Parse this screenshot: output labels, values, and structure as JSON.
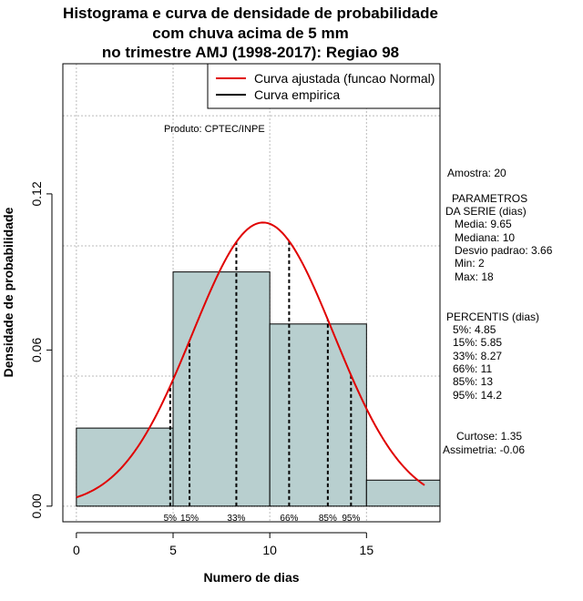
{
  "title_lines": [
    "Histograma e curva de densidade de probabilidade",
    "com chuva acima de 5 mm",
    "no trimestre AMJ (1998-2017): Regiao 98"
  ],
  "legend": {
    "fitted": "Curva ajustada (funcao Normal)",
    "empirical": "Curva empirica"
  },
  "product_label": "Produto: CPTEC/INPE",
  "stats": {
    "sample": "Amostra: 20",
    "params_title": "PARAMETROS",
    "params_subtitle": "DA SERIE (dias)",
    "mean": "Media: 9.65",
    "median": "Mediana: 10",
    "sd": "Desvio padrao: 3.66",
    "min": "Min: 2",
    "max": "Max: 18",
    "percentis_title": "PERCENTIS (dias)",
    "p5": "5%: 4.85",
    "p15": "15%: 5.85",
    "p33": "33%: 8.27",
    "p66": "66%: 11",
    "p85": "85%: 13",
    "p95": "95%: 14.2",
    "kurtosis": "Curtose: 1.35",
    "skewness": "Assimetria: -0.06"
  },
  "colors": {
    "bar_fill": "#b8cfcf",
    "fitted_curve": "#e00000",
    "grid": "#bbbbbb"
  },
  "chart_data": {
    "type": "bar",
    "xlabel": "Numero de dias",
    "ylabel": "Densidade de probabilidade",
    "xlim": [
      -0.7,
      18.8
    ],
    "ylim": [
      -0.006,
      0.17
    ],
    "x_ticks": [
      0,
      5,
      10,
      15
    ],
    "y_ticks": [
      0.0,
      0.06,
      0.12
    ],
    "y_tick_labels": [
      "0.00",
      "0.06",
      "0.12"
    ],
    "grid": true,
    "legend_position": "top-right",
    "bins": [
      {
        "start": 0,
        "end": 5,
        "density": 0.03
      },
      {
        "start": 5,
        "end": 10,
        "density": 0.09
      },
      {
        "start": 10,
        "end": 15,
        "density": 0.07
      },
      {
        "start": 15,
        "end": 18.8,
        "density": 0.01
      }
    ],
    "normal_fit": {
      "mean": 9.65,
      "sd": 3.66,
      "x_from": 0,
      "x_to": 18
    },
    "percentiles": [
      {
        "label": "5%",
        "x": 4.85
      },
      {
        "label": "15%",
        "x": 5.85
      },
      {
        "label": "33%",
        "x": 8.27
      },
      {
        "label": "66%",
        "x": 11
      },
      {
        "label": "85%",
        "x": 13
      },
      {
        "label": "95%",
        "x": 14.2
      }
    ]
  }
}
